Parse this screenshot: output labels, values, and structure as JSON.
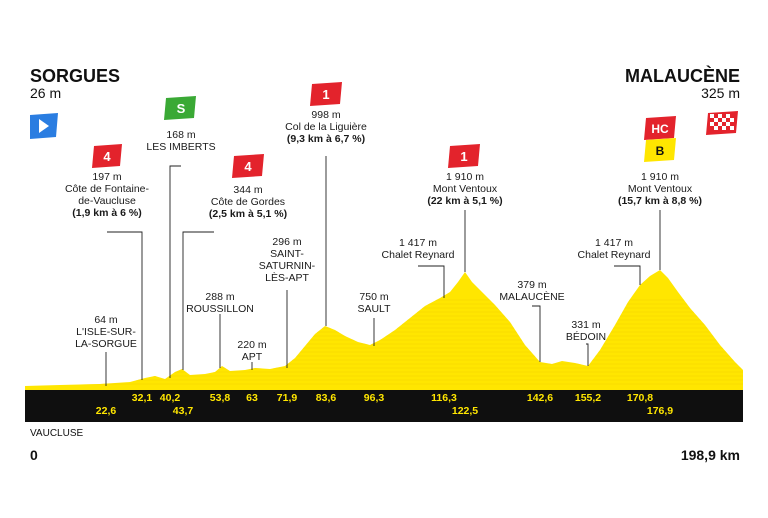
{
  "start": {
    "name": "SORGUES",
    "altitude": "26 m"
  },
  "finish": {
    "name": "MALAUCÈNE",
    "altitude": "325 m"
  },
  "region": "VAUCLUSE",
  "distance_start": "0",
  "distance_end": "198,9 km",
  "badges": {
    "cat4": "4",
    "cat1": "1",
    "sprint": "S",
    "hc": "HC",
    "bonus": "B"
  },
  "points": [
    {
      "id": "isle",
      "lines": [
        "64 m",
        "L'ISLE-SUR-",
        "LA-SORGUE"
      ],
      "bold": [],
      "km": "22,6"
    },
    {
      "id": "fontaine",
      "lines": [
        "197 m",
        "Côte de Fontaine-",
        "de-Vaucluse",
        "(1,9 km à 6 %)"
      ],
      "bold": [
        3
      ],
      "km": "32,1",
      "climb": "4"
    },
    {
      "id": "imberts",
      "lines": [
        "168 m",
        "LES IMBERTS"
      ],
      "bold": [],
      "km": "40,2",
      "sprint": true
    },
    {
      "id": "km437",
      "lines": [],
      "bold": [],
      "km": "43,7"
    },
    {
      "id": "gordes",
      "lines": [
        "344 m",
        "Côte de Gordes",
        "(2,5 km à 5,1 %)"
      ],
      "bold": [
        2
      ],
      "km": "",
      "climb": "4"
    },
    {
      "id": "roussillon",
      "lines": [
        "288 m",
        "ROUSSILLON"
      ],
      "bold": [],
      "km": "53,8"
    },
    {
      "id": "apt",
      "lines": [
        "220 m",
        "APT"
      ],
      "bold": [],
      "km": "63"
    },
    {
      "id": "saturnin",
      "lines": [
        "296 m",
        "SAINT-",
        "SATURNIN-",
        "LÈS-APT"
      ],
      "bold": [],
      "km": "71,9"
    },
    {
      "id": "liguiere",
      "lines": [
        "998 m",
        "Col de la Liguière",
        "(9,3 km à 6,7 %)"
      ],
      "bold": [
        2
      ],
      "km": "83,6",
      "climb": "1"
    },
    {
      "id": "sault",
      "lines": [
        "750 m",
        "SAULT"
      ],
      "bold": [],
      "km": "96,3"
    },
    {
      "id": "reynard1",
      "lines": [
        "1 417 m",
        "Chalet Reynard"
      ],
      "bold": [],
      "km": "116,3"
    },
    {
      "id": "ventoux1",
      "lines": [
        "1 910 m",
        "Mont Ventoux",
        "(22 km à 5,1 %)"
      ],
      "bold": [
        2
      ],
      "km": "122,5",
      "climb": "1"
    },
    {
      "id": "malaucene",
      "lines": [
        "379 m",
        "MALAUCÈNE"
      ],
      "bold": [],
      "km": "142,6"
    },
    {
      "id": "bedoin",
      "lines": [
        "331 m",
        "BÉDOIN"
      ],
      "bold": [],
      "km": "155,2"
    },
    {
      "id": "reynard2",
      "lines": [
        "1 417 m",
        "Chalet Reynard"
      ],
      "bold": [],
      "km": "170,8"
    },
    {
      "id": "ventoux2",
      "lines": [
        "1 910 m",
        "Mont Ventoux",
        "(15,7 km à 8,8 %)"
      ],
      "bold": [
        2
      ],
      "km": "176,9"
    }
  ],
  "colors": {
    "profile": "#ffe600",
    "profile_dark": "#e6c800",
    "band": "#0f0f0f",
    "cat": "#e3232c",
    "sprint": "#3aa935",
    "start": "#2a7de1",
    "bonus": "#ffe600"
  }
}
